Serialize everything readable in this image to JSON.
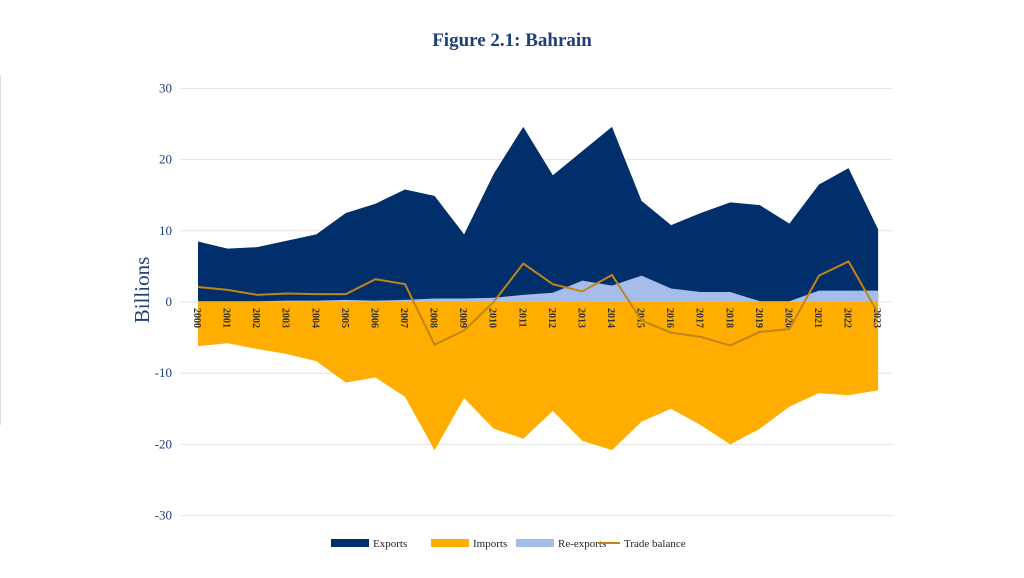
{
  "chart_data": {
    "type": "area",
    "title": "Figure 2.1: Bahrain",
    "xlabel": "",
    "ylabel": "Billions",
    "ylim": [
      -30,
      30
    ],
    "yticks": [
      30,
      20,
      10,
      0,
      -10,
      -20,
      -30
    ],
    "grid": true,
    "legend_position": "bottom",
    "x": [
      "2000",
      "2001",
      "2002",
      "2003",
      "2004",
      "2005",
      "2006",
      "2007",
      "2008",
      "2009",
      "2010",
      "2011",
      "2012",
      "2013",
      "2014",
      "2015",
      "2016",
      "2017",
      "2018",
      "2019",
      "2020",
      "2021",
      "2022",
      "2023"
    ],
    "series": [
      {
        "name": "Exports",
        "kind": "area",
        "color": "#002f6c",
        "values": [
          8.5,
          7.5,
          7.7,
          8.6,
          9.5,
          12.5,
          13.8,
          15.8,
          14.9,
          9.5,
          18.0,
          24.6,
          17.8,
          21.2,
          24.6,
          14.2,
          10.8,
          12.5,
          14.0,
          13.6,
          11.0,
          16.5,
          18.8,
          10.2
        ]
      },
      {
        "name": "Imports",
        "kind": "area",
        "color": "#ffad00",
        "values": [
          -6.2,
          -5.8,
          -6.6,
          -7.3,
          -8.3,
          -11.3,
          -10.6,
          -13.3,
          -20.8,
          -13.5,
          -17.8,
          -19.2,
          -15.3,
          -19.5,
          -20.8,
          -16.8,
          -15.0,
          -17.3,
          -20.0,
          -17.8,
          -14.7,
          -12.8,
          -13.1,
          -12.4
        ]
      },
      {
        "name": "Re-exports",
        "kind": "area",
        "color": "#a6bdea",
        "values": [
          0.1,
          0.1,
          0.1,
          0.2,
          0.2,
          0.3,
          0.2,
          0.3,
          0.5,
          0.5,
          0.6,
          1.0,
          1.3,
          3.0,
          2.3,
          3.7,
          1.9,
          1.4,
          1.4,
          0.1,
          0.1,
          1.6,
          1.6,
          1.6
        ]
      },
      {
        "name": "Trade balance",
        "kind": "line",
        "color": "#c08516",
        "values": [
          2.1,
          1.7,
          1.0,
          1.2,
          1.1,
          1.1,
          3.2,
          2.5,
          -6.0,
          -4.0,
          0.0,
          5.4,
          2.5,
          1.5,
          3.8,
          -2.6,
          -4.3,
          -4.9,
          -6.1,
          -4.2,
          -3.8,
          3.7,
          5.7,
          -1.6
        ]
      }
    ]
  }
}
